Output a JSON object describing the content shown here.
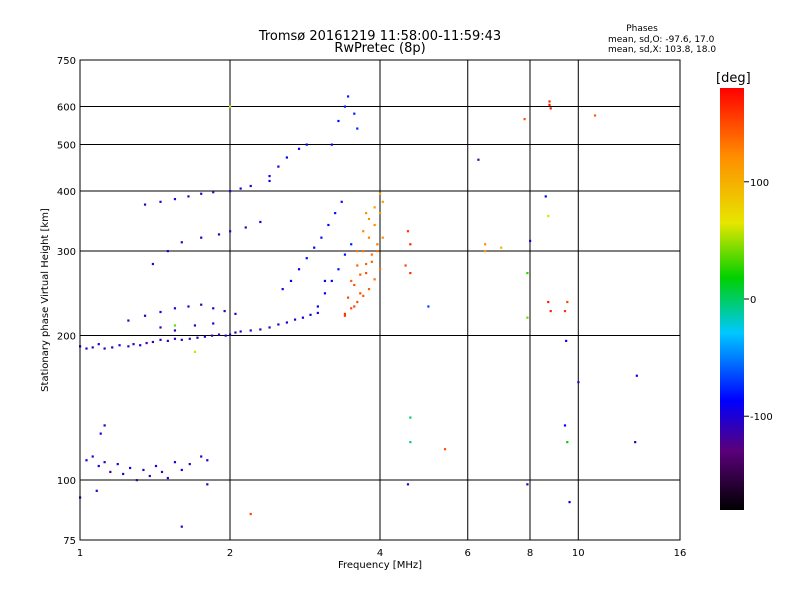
{
  "chart_data": {
    "type": "scatter",
    "title": "Tromsø 20161219 11:58:00-11:59:43",
    "subtitle": "RwPretec (8p)",
    "xlabel": "Frequency [MHz]",
    "ylabel": "Stationary phase Virtual Height [km]",
    "x_scale": "log",
    "y_scale": "log",
    "xlim": [
      1,
      16
    ],
    "ylim": [
      75,
      750
    ],
    "x_ticks": [
      1,
      2,
      4,
      6,
      8,
      10,
      16
    ],
    "y_ticks": [
      75,
      100,
      200,
      300,
      400,
      500,
      600,
      750
    ],
    "grid": true,
    "legend": {
      "title": "Phases",
      "lines": [
        "mean, sd,O: -97.6, 17.0",
        "mean, sd,X: 103.8, 18.0"
      ]
    },
    "colorbar": {
      "label": "[deg]",
      "ticks": [
        100,
        0,
        -100
      ],
      "range": [
        -180,
        180
      ]
    },
    "series": [
      {
        "values": [
          [
            1.0,
            190,
            -110
          ],
          [
            1.03,
            188,
            -105
          ],
          [
            1.06,
            189,
            -110
          ],
          [
            1.09,
            192,
            -100
          ],
          [
            1.12,
            188,
            -112
          ],
          [
            1.16,
            189,
            -108
          ],
          [
            1.2,
            191,
            -103
          ],
          [
            1.25,
            190,
            -115
          ],
          [
            1.28,
            192,
            -110
          ],
          [
            1.32,
            191,
            -105
          ],
          [
            1.36,
            193,
            -120
          ],
          [
            1.4,
            194,
            -112
          ],
          [
            1.45,
            196,
            -108
          ],
          [
            1.5,
            195,
            -115
          ],
          [
            1.55,
            197,
            -110
          ],
          [
            1.6,
            196,
            -105
          ],
          [
            1.66,
            197,
            -112
          ],
          [
            1.72,
            198,
            -108
          ],
          [
            1.78,
            199,
            -103
          ],
          [
            1.84,
            200,
            -110
          ],
          [
            1.9,
            201,
            -115
          ],
          [
            1.96,
            200,
            -108
          ],
          [
            2.0,
            201,
            -112
          ],
          [
            2.05,
            203,
            -105
          ],
          [
            2.1,
            204,
            -110
          ],
          [
            2.2,
            205,
            -108
          ],
          [
            2.3,
            206,
            -112
          ],
          [
            2.4,
            208,
            -105
          ],
          [
            2.5,
            211,
            -108
          ],
          [
            2.6,
            213,
            -100
          ],
          [
            2.7,
            216,
            -103
          ],
          [
            2.8,
            218,
            -98
          ],
          [
            2.9,
            221,
            -95
          ],
          [
            3.0,
            223,
            -97
          ],
          [
            1.25,
            215,
            -112
          ],
          [
            1.35,
            220,
            -108
          ],
          [
            1.45,
            224,
            -110
          ],
          [
            1.55,
            228,
            -105
          ],
          [
            1.65,
            230,
            -108
          ],
          [
            1.75,
            232,
            -112
          ],
          [
            1.85,
            228,
            -103
          ],
          [
            1.95,
            225,
            -110
          ],
          [
            2.05,
            222,
            -107
          ],
          [
            1.45,
            208,
            -115
          ],
          [
            1.55,
            205,
            -108
          ],
          [
            1.7,
            210,
            -112
          ],
          [
            1.85,
            212,
            -106
          ],
          [
            1.4,
            282,
            -110
          ],
          [
            1.5,
            300,
            -105
          ],
          [
            1.6,
            313,
            -110
          ],
          [
            1.75,
            320,
            -108
          ],
          [
            1.9,
            325,
            -112
          ],
          [
            2.0,
            330,
            -105
          ],
          [
            2.15,
            336,
            -110
          ],
          [
            2.3,
            345,
            -103
          ],
          [
            1.35,
            375,
            -112
          ],
          [
            1.45,
            380,
            -108
          ],
          [
            1.55,
            385,
            -105
          ],
          [
            1.65,
            390,
            -110
          ],
          [
            1.75,
            395,
            -108
          ],
          [
            1.85,
            398,
            -112
          ],
          [
            2.0,
            400,
            -105
          ],
          [
            2.1,
            405,
            -108
          ],
          [
            2.2,
            410,
            -103
          ],
          [
            2.4,
            420,
            -100
          ],
          [
            2.4,
            430,
            -95
          ],
          [
            2.5,
            450,
            -98
          ],
          [
            2.6,
            470,
            -92
          ],
          [
            2.75,
            490,
            -96
          ],
          [
            2.85,
            500,
            -90
          ],
          [
            2.55,
            250,
            -98
          ],
          [
            2.65,
            260,
            -92
          ],
          [
            2.75,
            275,
            -95
          ],
          [
            2.85,
            290,
            -88
          ],
          [
            2.95,
            305,
            -90
          ],
          [
            3.05,
            320,
            -86
          ],
          [
            3.15,
            340,
            -88
          ],
          [
            3.25,
            360,
            -84
          ],
          [
            3.35,
            380,
            -87
          ],
          [
            3.2,
            500,
            -90
          ],
          [
            3.3,
            560,
            -88
          ],
          [
            3.4,
            600,
            -85
          ],
          [
            3.45,
            630,
            -82
          ],
          [
            3.55,
            580,
            -80
          ],
          [
            3.6,
            540,
            -78
          ],
          [
            3.1,
            245,
            -92
          ],
          [
            3.2,
            260,
            -88
          ],
          [
            3.3,
            275,
            -84
          ],
          [
            3.4,
            295,
            -86
          ],
          [
            3.5,
            310,
            -82
          ],
          [
            3.0,
            230,
            -90
          ],
          [
            3.1,
            260,
            -95
          ],
          [
            1.03,
            110,
            -102
          ],
          [
            1.06,
            112,
            -110
          ],
          [
            1.09,
            107,
            -96
          ],
          [
            1.12,
            109,
            -108
          ],
          [
            1.15,
            104,
            -118
          ],
          [
            1.19,
            108,
            -100
          ],
          [
            1.22,
            103,
            -112
          ],
          [
            1.26,
            106,
            -96
          ],
          [
            1.3,
            100,
            -120
          ],
          [
            1.34,
            105,
            -104
          ],
          [
            1.38,
            102,
            -110
          ],
          [
            1.42,
            107,
            -98
          ],
          [
            1.46,
            104,
            -114
          ],
          [
            1.5,
            101,
            -108
          ],
          [
            1.55,
            109,
            -102
          ],
          [
            1.6,
            105,
            -95
          ],
          [
            1.66,
            108,
            -105
          ],
          [
            1.75,
            112,
            -110
          ],
          [
            1.8,
            110,
            -100
          ],
          [
            1.0,
            92,
            -110
          ],
          [
            1.08,
            95,
            -105
          ],
          [
            1.6,
            80,
            -110
          ],
          [
            1.8,
            98,
            -108
          ],
          [
            1.1,
            125,
            -100
          ],
          [
            1.12,
            130,
            -105
          ]
        ]
      },
      {
        "values": [
          [
            3.4,
            220,
            155
          ],
          [
            3.5,
            228,
            150
          ],
          [
            3.6,
            235,
            145
          ],
          [
            3.7,
            242,
            140
          ],
          [
            3.8,
            250,
            138
          ],
          [
            3.9,
            262,
            135
          ],
          [
            4.0,
            275,
            132
          ],
          [
            3.45,
            240,
            150
          ],
          [
            3.55,
            255,
            145
          ],
          [
            3.65,
            268,
            142
          ],
          [
            3.75,
            282,
            138
          ],
          [
            3.85,
            295,
            135
          ],
          [
            3.95,
            310,
            130
          ],
          [
            3.5,
            260,
            140
          ],
          [
            3.6,
            280,
            138
          ],
          [
            3.7,
            300,
            130
          ],
          [
            3.8,
            320,
            125
          ],
          [
            3.9,
            340,
            120
          ],
          [
            4.0,
            360,
            115
          ],
          [
            4.05,
            380,
            110
          ],
          [
            3.6,
            300,
            128
          ],
          [
            3.7,
            330,
            122
          ],
          [
            3.8,
            350,
            118
          ],
          [
            3.9,
            370,
            112
          ],
          [
            4.0,
            395,
            108
          ],
          [
            3.75,
            270,
            145
          ],
          [
            3.85,
            285,
            140
          ],
          [
            3.4,
            222,
            158
          ],
          [
            3.55,
            230,
            152
          ],
          [
            3.65,
            245,
            148
          ],
          [
            3.95,
            300,
            132
          ],
          [
            4.05,
            320,
            120
          ],
          [
            3.75,
            360,
            115
          ],
          [
            4.55,
            330,
            160
          ],
          [
            4.6,
            310,
            165
          ],
          [
            4.5,
            280,
            150
          ],
          [
            4.6,
            270,
            162
          ],
          [
            8.75,
            605,
            170
          ],
          [
            8.75,
            615,
            165
          ],
          [
            8.8,
            595,
            168
          ],
          [
            10.8,
            575,
            140
          ],
          [
            7.8,
            565,
            145
          ],
          [
            6.5,
            300,
            110
          ],
          [
            6.5,
            310,
            120
          ],
          [
            7.0,
            305,
            95
          ],
          [
            8.0,
            315,
            -100
          ],
          [
            8.7,
            235,
            170
          ],
          [
            8.8,
            225,
            165
          ],
          [
            9.4,
            225,
            160
          ],
          [
            9.5,
            235,
            150
          ]
        ]
      },
      {
        "values": [
          [
            8.6,
            390,
            -90
          ],
          [
            8.7,
            355,
            60
          ],
          [
            7.9,
            270,
            30
          ],
          [
            7.9,
            218,
            40
          ],
          [
            9.45,
            195,
            -95
          ],
          [
            10.0,
            160,
            -110
          ],
          [
            9.4,
            130,
            -90
          ],
          [
            9.5,
            120,
            20
          ],
          [
            13.0,
            120,
            -110
          ],
          [
            13.1,
            165,
            -100
          ],
          [
            9.6,
            90,
            -90
          ],
          [
            7.9,
            98,
            -110
          ],
          [
            4.6,
            135,
            0
          ],
          [
            4.6,
            120,
            -10
          ],
          [
            5.4,
            116,
            145
          ],
          [
            4.55,
            98,
            -110
          ],
          [
            6.3,
            465,
            -120
          ],
          [
            5.0,
            230,
            -70
          ],
          [
            2.2,
            85,
            150
          ],
          [
            1.7,
            185,
            60
          ],
          [
            1.55,
            210,
            40
          ],
          [
            2.0,
            600,
            60
          ]
        ]
      }
    ]
  }
}
